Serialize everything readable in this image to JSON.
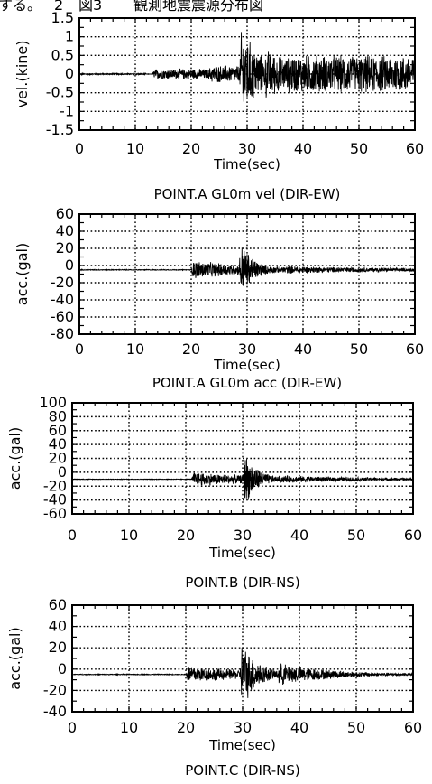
{
  "header": {
    "fragment": "する。",
    "prefix": "2",
    "figure_label": "図3",
    "figure_title": "観測地震震源分布図"
  },
  "chart_data": [
    {
      "type": "line",
      "title": "POINT.A GL0m vel (DIR-EW)",
      "xlabel": "Time(sec)",
      "ylabel": "vel.(kine)",
      "xlim": [
        0,
        60
      ],
      "ylim": [
        -1.5,
        1.5
      ],
      "xticks": [
        0,
        10,
        20,
        30,
        40,
        50,
        60
      ],
      "yticks": [
        1.5,
        1,
        0.5,
        0,
        -0.5,
        -1,
        -1.5
      ],
      "ytick_labels": [
        "1.5",
        "1",
        "0.5",
        "0",
        "-0.5",
        "-1",
        "-1.5"
      ],
      "grid": true,
      "baseline": 0,
      "onset": 12,
      "pre_noise": 0.02,
      "events": [
        {
          "t": 13,
          "amp": 0.15,
          "decay": 1000
        },
        {
          "t": 23,
          "amp": 0.25,
          "decay": 1000
        },
        {
          "t": 28.6,
          "amp": 1.5,
          "decay": 4
        },
        {
          "t": 33,
          "amp": 0.75,
          "decay": 8
        },
        {
          "t": 37,
          "amp": 0.55,
          "decay": 1000
        }
      ],
      "color": "#000000"
    },
    {
      "type": "line",
      "title": "POINT.A GL0m acc (DIR-EW)",
      "xlabel": "Time(sec)",
      "ylabel": "acc.(gal)",
      "xlim": [
        0,
        60
      ],
      "ylim": [
        -80,
        60
      ],
      "xticks": [
        0,
        10,
        20,
        30,
        40,
        50,
        60
      ],
      "yticks": [
        60,
        40,
        20,
        0,
        -20,
        -40,
        -60,
        -80
      ],
      "ytick_labels": [
        "60",
        "40",
        "20",
        "0",
        "-20",
        "-40",
        "-60",
        "-80"
      ],
      "grid": true,
      "baseline": -5,
      "onset": 20,
      "pre_noise": 0.5,
      "events": [
        {
          "t": 20,
          "amp": 12,
          "decay": 14
        },
        {
          "t": 28.5,
          "amp": 42,
          "decay": 2.5
        },
        {
          "t": 36,
          "amp": 5,
          "decay": 25
        }
      ],
      "color": "#000000"
    },
    {
      "type": "line",
      "title": "POINT.B (DIR-NS)",
      "xlabel": "Time(sec)",
      "ylabel": "acc.(gal)",
      "xlim": [
        0,
        60
      ],
      "ylim": [
        -60,
        100
      ],
      "xticks": [
        0,
        10,
        20,
        30,
        40,
        50,
        60
      ],
      "yticks": [
        100,
        80,
        60,
        40,
        20,
        0,
        -20,
        -40,
        -60
      ],
      "ytick_labels": [
        "100",
        "80",
        "60",
        "40",
        "20",
        "0",
        "-20",
        "-40",
        "-60"
      ],
      "grid": true,
      "baseline": -10,
      "onset": 21,
      "pre_noise": 0.5,
      "events": [
        {
          "t": 21,
          "amp": 12,
          "decay": 14
        },
        {
          "t": 30,
          "amp": 48,
          "decay": 2.5
        },
        {
          "t": 36,
          "amp": 6,
          "decay": 22
        }
      ],
      "color": "#000000"
    },
    {
      "type": "line",
      "title": "POINT.C (DIR-NS)",
      "xlabel": "Time(sec)",
      "ylabel": "acc.(gal)",
      "xlim": [
        0,
        60
      ],
      "ylim": [
        -40,
        60
      ],
      "xticks": [
        0,
        10,
        20,
        30,
        40,
        50,
        60
      ],
      "yticks": [
        60,
        40,
        20,
        0,
        -20,
        -40
      ],
      "ytick_labels": [
        "60",
        "40",
        "20",
        "0",
        "-20",
        "-40"
      ],
      "grid": true,
      "baseline": -5,
      "onset": 20,
      "pre_noise": 0.4,
      "events": [
        {
          "t": 20,
          "amp": 9,
          "decay": 14
        },
        {
          "t": 29.5,
          "amp": 38,
          "decay": 3
        },
        {
          "t": 36,
          "amp": 12,
          "decay": 10
        }
      ],
      "color": "#000000"
    }
  ]
}
